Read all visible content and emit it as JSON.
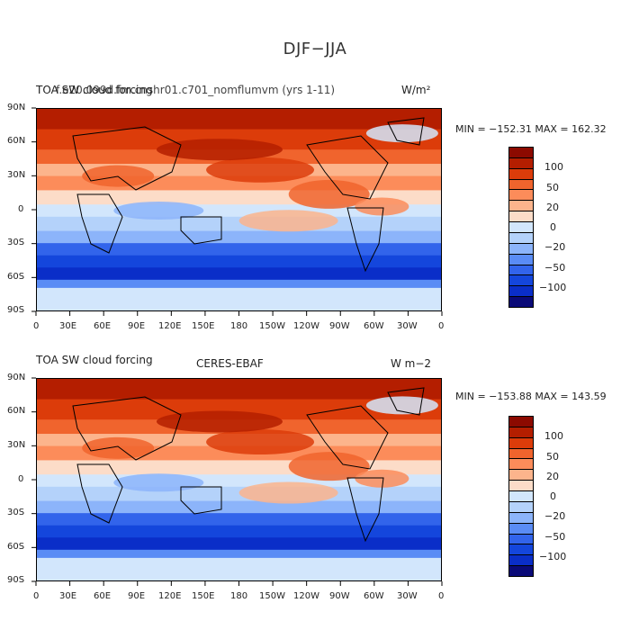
{
  "figure": {
    "title": "DJF−JJA"
  },
  "colorbar": {
    "colors": [
      "#0a0a78",
      "#0a2ec8",
      "#1446dc",
      "#3264eb",
      "#5a8cf5",
      "#8cb4fa",
      "#b4d2fa",
      "#d2e6fc",
      "#fcdcc8",
      "#fcb48c",
      "#fc8c5a",
      "#f0642d",
      "#dc3c0a",
      "#b41e00",
      "#8c0a00"
    ],
    "labels": [
      "−100",
      "−50",
      "−20",
      "0",
      "20",
      "50",
      "100"
    ]
  },
  "axes": {
    "lat_labels": [
      "90N",
      "60N",
      "30N",
      "0",
      "30S",
      "60S",
      "90S"
    ],
    "lon_labels": [
      "0",
      "30E",
      "60E",
      "90E",
      "120E",
      "150E",
      "180",
      "150W",
      "120W",
      "90W",
      "60W",
      "30W",
      "0"
    ]
  },
  "panels": [
    {
      "title_left": "TOA SW cloud forcing",
      "title_overlap": "f.e20.099d.fm.cnshr01.c701_nomflumvm (yrs 1-11)",
      "units": "W/m²",
      "stats": "MIN = −152.31  MAX = 162.32"
    },
    {
      "title_left": "TOA SW cloud forcing",
      "title_mid": "CERES-EBAF",
      "units": "W m−2",
      "stats": "MIN = −153.88  MAX = 143.59"
    }
  ]
}
